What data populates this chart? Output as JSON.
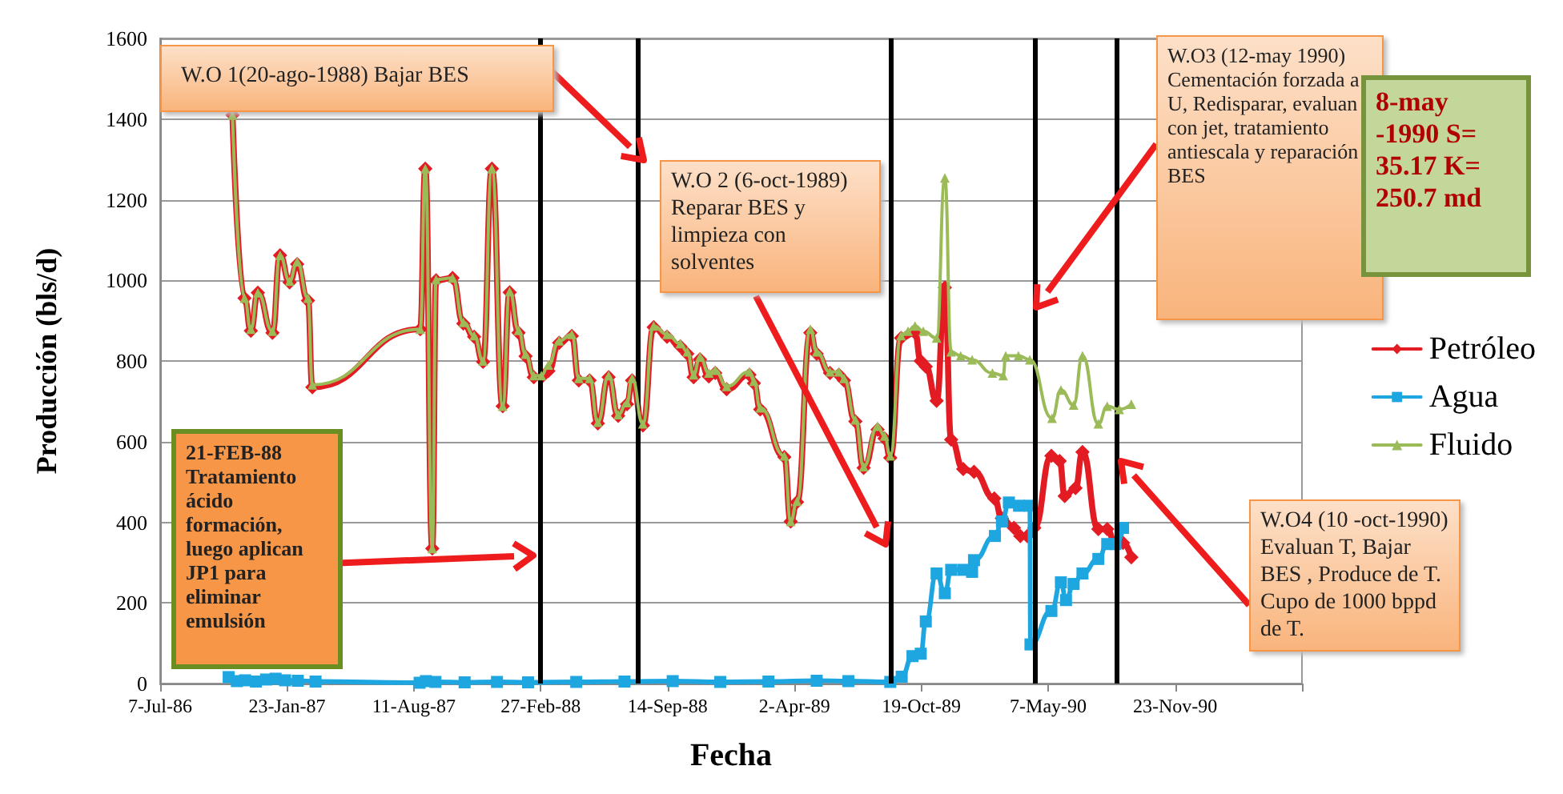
{
  "chart_data": {
    "type": "line",
    "xlabel": "Fecha",
    "ylabel": "Producción (bls/d)",
    "xlim": [
      "1986-07-07",
      "1991-06-11"
    ],
    "xticks": [
      {
        "value": "1986-07-07",
        "label": "7-Jul-86"
      },
      {
        "value": "1987-01-23",
        "label": "23-Jan-87"
      },
      {
        "value": "1987-08-11",
        "label": "11-Aug-87"
      },
      {
        "value": "1988-02-27",
        "label": "27-Feb-88"
      },
      {
        "value": "1988-09-14",
        "label": "14-Sep-88"
      },
      {
        "value": "1989-04-02",
        "label": "2-Apr-89"
      },
      {
        "value": "1989-10-19",
        "label": "19-Oct-89"
      },
      {
        "value": "1990-05-07",
        "label": "7-May-90"
      },
      {
        "value": "1990-11-23",
        "label": "23-Nov-90"
      },
      {
        "value": "1991-06-11",
        "label": null
      }
    ],
    "ylim": [
      0,
      1600
    ],
    "yticks": [
      0,
      200,
      400,
      600,
      800,
      1000,
      1200,
      1400,
      1600
    ],
    "grid": "y",
    "legend": "right",
    "line_style": "solid",
    "series": [
      {
        "name": "Petróleo",
        "color": "#e31b23",
        "marker": "diamond",
        "x": [
          "1986-10-29",
          "1986-11-17",
          "1986-11-27",
          "1986-12-08",
          "1986-12-31",
          "1987-01-12",
          "1987-01-27",
          "1987-02-08",
          "1987-02-25",
          "1987-03-04",
          "1987-08-21",
          "1987-08-29",
          "1987-09-09",
          "1987-09-15",
          "1987-10-11",
          "1987-10-28",
          "1987-11-14",
          "1987-11-28",
          "1987-12-12",
          "1987-12-29",
          "1988-01-09",
          "1988-01-23",
          "1988-02-03",
          "1988-02-16",
          "1988-02-28",
          "1988-03-10",
          "1988-03-27",
          "1988-04-16",
          "1988-04-27",
          "1988-05-14",
          "1988-05-27",
          "1988-06-13",
          "1988-06-28",
          "1988-07-12",
          "1988-07-20",
          "1988-08-06",
          "1988-08-23",
          "1988-09-13",
          "1988-10-04",
          "1988-10-15",
          "1988-10-25",
          "1988-11-04",
          "1988-11-18",
          "1988-11-28",
          "1988-12-16",
          "1989-01-21",
          "1989-01-28",
          "1989-02-07",
          "1989-03-17",
          "1989-03-27",
          "1989-04-06",
          "1989-04-27",
          "1989-05-07",
          "1989-05-28",
          "1989-06-11",
          "1989-06-19",
          "1989-07-07",
          "1989-07-20",
          "1989-08-11",
          "1989-08-22",
          "1989-08-31",
          "1989-09-17",
          "1989-10-09",
          "1989-10-18",
          "1989-10-26",
          "1989-11-12",
          "1989-11-25",
          "1989-12-05",
          "1989-12-24",
          "1990-01-10",
          "1990-02-11",
          "1990-02-23",
          "1990-03-14",
          "1990-03-24",
          "1990-04-04",
          "1990-04-15",
          "1990-05-12",
          "1990-05-25",
          "1990-06-02",
          "1990-06-19",
          "1990-06-30",
          "1990-07-25",
          "1990-08-08",
          "1990-08-21",
          "1990-09-02",
          "1990-09-15"
        ],
        "values": [
          1410,
          956,
          875,
          969,
          870,
          1062,
          995,
          1040,
          950,
          735,
          879,
          1277,
          335,
          1000,
          1006,
          893,
          860,
          798,
          1277,
          688,
          970,
          870,
          812,
          760,
          760,
          775,
          845,
          862,
          752,
          752,
          645,
          760,
          664,
          693,
          752,
          640,
          884,
          860,
          836,
          818,
          760,
          804,
          762,
          770,
          730,
          766,
          745,
          680,
          562,
          402,
          450,
          870,
          818,
          770,
          766,
          752,
          650,
          535,
          630,
          608,
          560,
          857,
          870,
          800,
          786,
          701,
          982,
          605,
          532,
          525,
          459,
          410,
          386,
          366,
          366,
          386,
          565,
          552,
          465,
          485,
          574,
          383,
          383,
          346,
          349,
          313
        ]
      },
      {
        "name": "Agua",
        "color": "#1ea6e0",
        "marker": "square",
        "x": [
          "1986-10-23",
          "1986-11-05",
          "1986-11-18",
          "1986-12-05",
          "1986-12-21",
          "1987-01-05",
          "1987-01-20",
          "1987-02-09",
          "1987-03-09",
          "1987-08-20",
          "1987-08-30",
          "1987-09-14",
          "1987-10-30",
          "1987-12-20",
          "1988-02-07",
          "1988-04-23",
          "1988-07-08",
          "1988-09-22",
          "1988-12-06",
          "1989-02-20",
          "1989-05-07",
          "1989-06-26",
          "1989-08-31",
          "1989-09-18",
          "1989-10-05",
          "1989-10-18",
          "1989-10-26",
          "1989-11-12",
          "1989-11-25",
          "1989-12-05",
          "1989-12-24",
          "1990-01-07",
          "1990-01-10",
          "1990-02-12",
          "1990-02-23",
          "1990-03-06",
          "1990-03-22",
          "1990-04-08",
          "1990-04-09",
          "1990-05-12",
          "1990-05-27",
          "1990-06-04",
          "1990-06-16",
          "1990-06-30",
          "1990-07-25",
          "1990-08-08",
          "1990-08-21",
          "1990-09-02"
        ],
        "values": [
          16,
          6,
          8,
          5,
          10,
          12,
          8,
          7,
          5,
          2,
          6,
          4,
          3,
          4,
          3,
          4,
          5,
          6,
          4,
          5,
          7,
          6,
          4,
          17,
          68,
          74,
          154,
          273,
          224,
          282,
          282,
          277,
          306,
          366,
          402,
          449,
          441,
          441,
          97,
          180,
          251,
          207,
          247,
          273,
          309,
          346,
          346,
          386
        ]
      },
      {
        "name": "Fluido",
        "color": "#9bbb59",
        "marker": "triangle",
        "x": [
          "1986-10-29",
          "1986-11-17",
          "1986-11-27",
          "1986-12-08",
          "1986-12-31",
          "1987-01-12",
          "1987-01-27",
          "1987-02-08",
          "1987-02-25",
          "1987-03-04",
          "1987-08-21",
          "1987-08-29",
          "1987-09-09",
          "1987-09-15",
          "1987-10-11",
          "1987-10-28",
          "1987-11-14",
          "1987-11-28",
          "1987-12-12",
          "1987-12-29",
          "1988-01-09",
          "1988-01-23",
          "1988-02-03",
          "1988-02-16",
          "1988-02-28",
          "1988-03-10",
          "1988-03-27",
          "1988-04-16",
          "1988-04-27",
          "1988-05-14",
          "1988-05-27",
          "1988-06-13",
          "1988-06-28",
          "1988-07-12",
          "1988-07-20",
          "1988-08-06",
          "1988-08-23",
          "1988-09-13",
          "1988-10-04",
          "1988-10-15",
          "1988-10-25",
          "1988-11-04",
          "1988-11-18",
          "1988-11-28",
          "1988-12-16",
          "1989-01-21",
          "1989-01-28",
          "1989-02-07",
          "1989-03-17",
          "1989-03-27",
          "1989-04-06",
          "1989-04-27",
          "1989-05-07",
          "1989-05-28",
          "1989-06-11",
          "1989-06-19",
          "1989-07-07",
          "1989-07-20",
          "1989-08-11",
          "1989-08-22",
          "1989-08-31",
          "1989-09-17",
          "1989-09-28",
          "1989-10-09",
          "1989-10-22",
          "1989-11-12",
          "1989-11-25",
          "1989-12-05",
          "1989-12-20",
          "1990-01-07",
          "1990-02-08",
          "1990-02-25",
          "1990-03-01",
          "1990-03-21",
          "1990-04-08",
          "1990-05-13",
          "1990-05-27",
          "1990-06-16",
          "1990-06-30",
          "1990-07-25",
          "1990-08-08",
          "1990-08-27",
          "1990-09-15"
        ],
        "values": [
          1410,
          956,
          879,
          969,
          874,
          1062,
          998,
          1046,
          956,
          741,
          879,
          1277,
          335,
          1002,
          1006,
          896,
          863,
          800,
          1277,
          688,
          972,
          876,
          817,
          764,
          764,
          790,
          850,
          866,
          757,
          757,
          648,
          764,
          667,
          697,
          757,
          644,
          887,
          866,
          843,
          823,
          766,
          810,
          770,
          777,
          737,
          773,
          750,
          684,
          565,
          402,
          452,
          879,
          823,
          773,
          773,
          757,
          654,
          538,
          638,
          614,
          565,
          863,
          874,
          887,
          874,
          857,
          1254,
          823,
          813,
          803,
          770,
          764,
          813,
          813,
          803,
          658,
          728,
          691,
          813,
          644,
          688,
          680,
          693
        ]
      }
    ],
    "ref_lines": [
      {
        "axis": "x",
        "value": "1988-02-25",
        "color": "#000000"
      },
      {
        "axis": "x",
        "value": "1988-07-28",
        "color": "#000000"
      },
      {
        "axis": "x",
        "value": "1989-09-02",
        "color": "#000000"
      },
      {
        "axis": "x",
        "value": "1990-04-15",
        "color": "#000000"
      },
      {
        "axis": "x",
        "value": "1990-08-22",
        "color": "#000000"
      }
    ],
    "annotations": [
      "W.O 1(20-ago-1988) Bajar BES",
      "21-FEB-88 Tratamiento ácido formación, luego aplican JP1 para eliminar emulsión",
      "W.O 2  (6-oct-1989) Reparar BES y limpieza con solventes",
      "W.O3 (12-may 1990) Cementación forzada a U, Redisparar, evaluan con jet, tratamiento antiescala y reparación BES",
      "8-may -1990 S= 35.17 K= 250.7 md",
      "W.O4 (10 -oct-1990) Evaluan T, Bajar BES , Produce de T. Cupo de 1000 bppd  de T."
    ]
  }
}
